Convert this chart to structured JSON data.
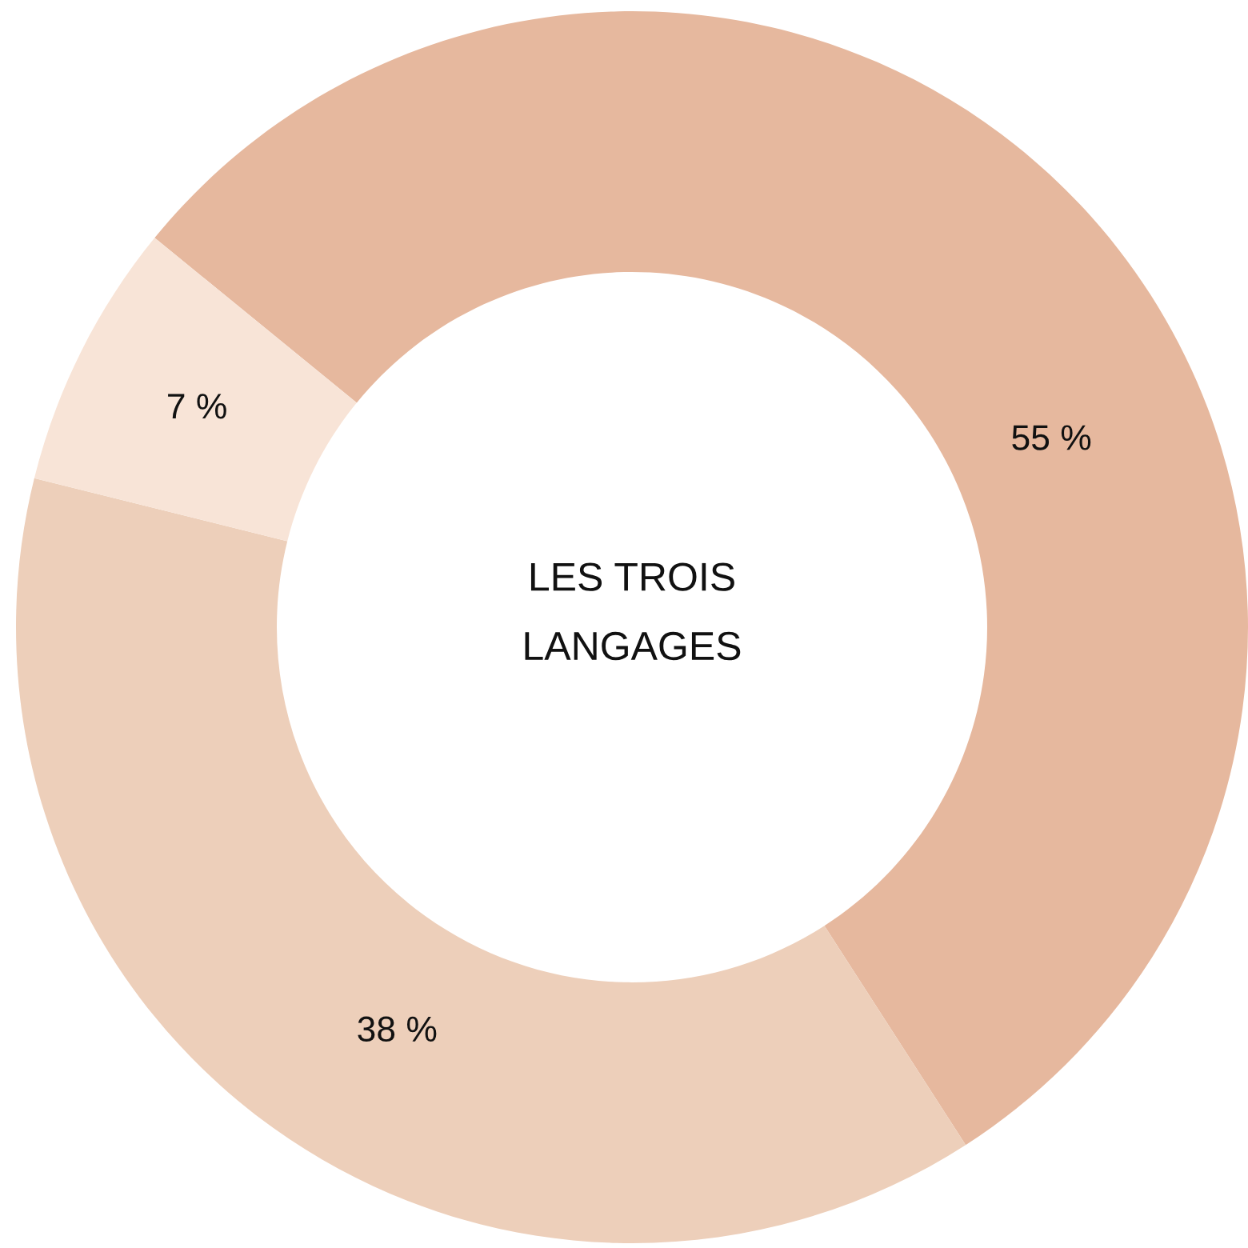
{
  "chart_data": {
    "type": "donut",
    "title": "LES TROIS\nLANGAGES",
    "categories": [
      null,
      null,
      null
    ],
    "values": [
      55,
      38,
      7
    ],
    "colors": [
      "#e6b89e",
      "#edcfba",
      "#f8e4d7"
    ],
    "value_labels": [
      "55 %",
      "38 %",
      "7 %"
    ]
  }
}
